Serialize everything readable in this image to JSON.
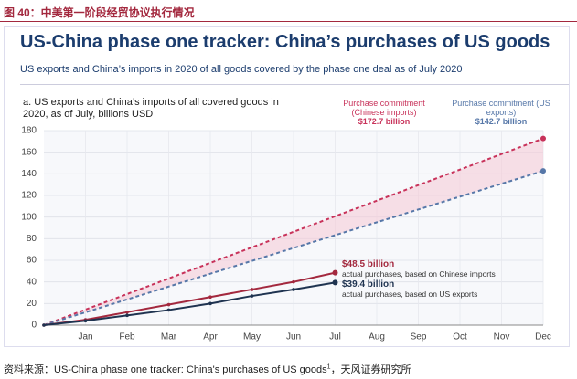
{
  "header": {
    "title": "图 40：中美第一阶段经贸协议执行情况"
  },
  "chart_data": {
    "type": "line",
    "title": "US-China phase one tracker: China’s purchases of US goods",
    "subtitle": "US exports and China’s imports in 2020 of all goods covered by the phase one deal as of July 2020",
    "panel_title": "a. US exports and China’s imports of all covered goods in 2020, as of July, billions USD",
    "xlim": [
      0,
      12
    ],
    "xticks": [
      {
        "value": 1,
        "label": "Jan"
      },
      {
        "value": 2,
        "label": "Feb"
      },
      {
        "value": 3,
        "label": "Mar"
      },
      {
        "value": 4,
        "label": "Apr"
      },
      {
        "value": 5,
        "label": "May"
      },
      {
        "value": 6,
        "label": "Jun"
      },
      {
        "value": 7,
        "label": "Jul"
      },
      {
        "value": 8,
        "label": "Aug"
      },
      {
        "value": 9,
        "label": "Sep"
      },
      {
        "value": 10,
        "label": "Oct"
      },
      {
        "value": 11,
        "label": "Nov"
      },
      {
        "value": 12,
        "label": "Dec"
      }
    ],
    "ylim": [
      0,
      180
    ],
    "yticks": [
      0,
      20,
      40,
      60,
      80,
      100,
      120,
      140,
      160,
      180
    ],
    "grid": true,
    "series": [
      {
        "name": "Purchase commitment (Chinese imports)",
        "color": "#c8325a",
        "dashed": true,
        "x": [
          0,
          12
        ],
        "values": [
          0,
          172.7
        ],
        "value_labels": [
          null,
          "$172.7 billion"
        ]
      },
      {
        "name": "Purchase commitment (US exports)",
        "color": "#5677a8",
        "dashed": true,
        "x": [
          0,
          12
        ],
        "values": [
          0,
          142.7
        ],
        "value_labels": [
          null,
          "$142.7 billion"
        ]
      },
      {
        "name": "actual purchases, based on Chinese imports",
        "color": "#a3283e",
        "dashed": false,
        "x": [
          0,
          1,
          2,
          3,
          4,
          5,
          6,
          7
        ],
        "values": [
          0,
          5,
          12,
          19,
          26,
          33,
          40,
          48.5
        ],
        "value_labels": [
          null,
          null,
          null,
          null,
          null,
          null,
          null,
          "$48.5 billion"
        ]
      },
      {
        "name": "actual purchases, based on US exports",
        "color": "#1f3350",
        "dashed": false,
        "x": [
          0,
          1,
          2,
          3,
          4,
          5,
          6,
          7
        ],
        "values": [
          0,
          4,
          9,
          14,
          20,
          27,
          33,
          39.4
        ],
        "value_labels": [
          null,
          null,
          null,
          null,
          null,
          null,
          null,
          "$39.4 billion"
        ]
      }
    ]
  },
  "source": {
    "prefix": "资料来源：",
    "text": "US-China phase one tracker: China's purchases of US goods",
    "note": "1",
    "suffix": "，天风证券研究所"
  }
}
